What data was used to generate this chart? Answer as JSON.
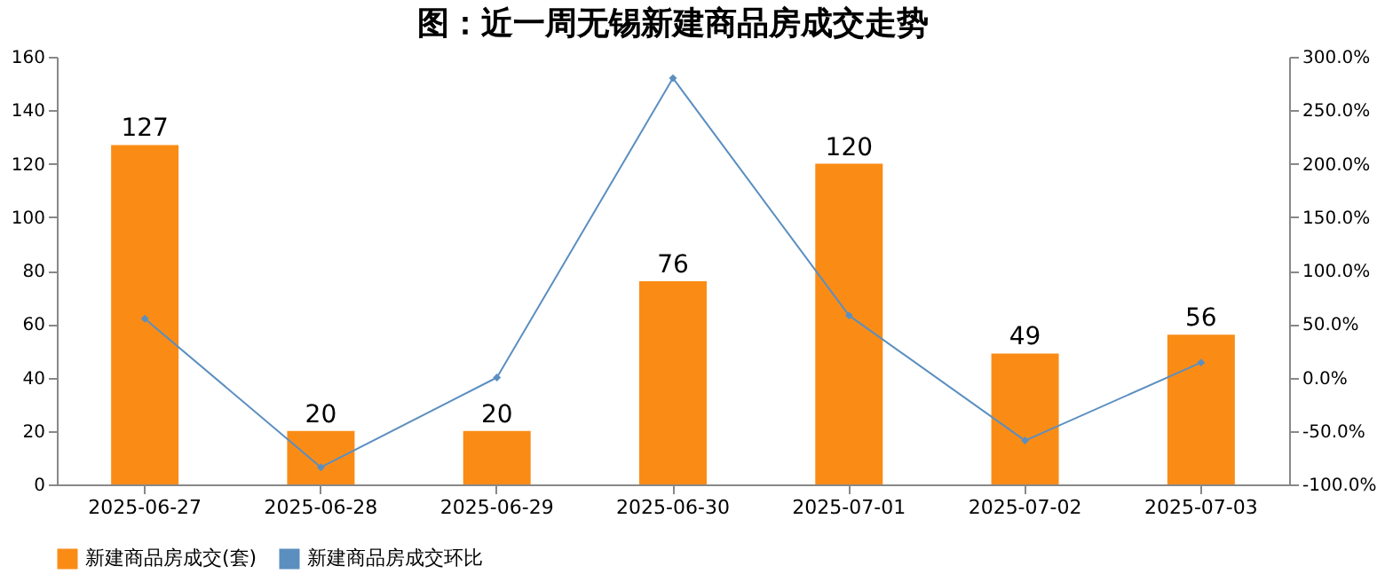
{
  "chart_data": {
    "type": "bar",
    "title": "图：近一周无锡新建商品房成交走势",
    "categories": [
      "2025-06-27",
      "2025-06-28",
      "2025-06-29",
      "2025-06-30",
      "2025-07-01",
      "2025-07-02",
      "2025-07-03"
    ],
    "series": [
      {
        "name": "新建商品房成交(套)",
        "color": "#fa8c16",
        "values": [
          127,
          20,
          20,
          76,
          120,
          49,
          56
        ],
        "value_labels": [
          "127",
          "20",
          "20",
          "76",
          "120",
          "49",
          "56"
        ]
      },
      {
        "name": "新建商品房成交环比",
        "type": "line",
        "axis": "y2",
        "color": "#5b8fc0",
        "marker": "diamond",
        "values": [
          55,
          -84,
          0,
          280,
          58,
          -59,
          14
        ]
      }
    ],
    "ylim": [
      0,
      160
    ],
    "yticks": [
      0,
      20,
      40,
      60,
      80,
      100,
      120,
      140,
      160
    ],
    "y2lim": [
      -100,
      300
    ],
    "y2ticks": [
      {
        "value": -100,
        "label": "-100.0%"
      },
      {
        "value": -50,
        "label": "-50.0%"
      },
      {
        "value": 0,
        "label": "0.0%"
      },
      {
        "value": 50,
        "label": "50.0%"
      },
      {
        "value": 100,
        "label": "100.0%"
      },
      {
        "value": 150,
        "label": "150.0%"
      },
      {
        "value": 200,
        "label": "200.0%"
      },
      {
        "value": 250,
        "label": "250.0%"
      },
      {
        "value": 300,
        "label": "300.0%"
      }
    ],
    "grid": false,
    "legend": "bottom"
  }
}
